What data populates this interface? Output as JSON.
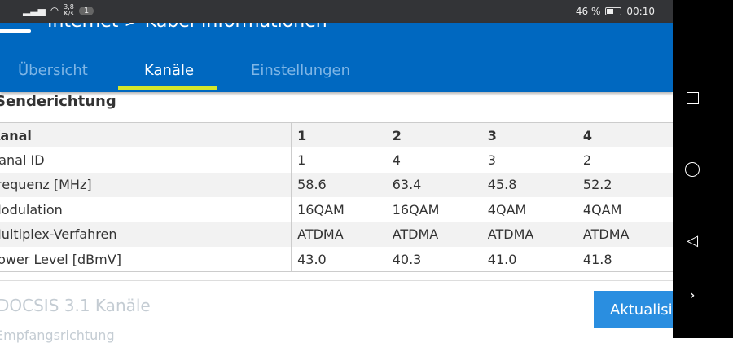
{
  "status": {
    "speed_value": "3,8",
    "speed_unit": "K/s",
    "notif_count": "1",
    "battery": "46 %",
    "time": "00:10"
  },
  "header": {
    "title": "Internet > Kabel-Informationen",
    "tabs": [
      {
        "label": "Übersicht"
      },
      {
        "label": "Kanäle",
        "active": true
      },
      {
        "label": "Einstellungen"
      }
    ]
  },
  "section": {
    "title": "Senderichtung"
  },
  "table": {
    "rows": [
      [
        "Kanal",
        "1",
        "2",
        "3",
        "4"
      ],
      [
        "Kanal ID",
        "1",
        "4",
        "3",
        "2"
      ],
      [
        "Frequenz [MHz]",
        "58.6",
        "63.4",
        "45.8",
        "52.2"
      ],
      [
        "Modulation",
        "16QAM",
        "16QAM",
        "4QAM",
        "4QAM"
      ],
      [
        "Multiplex-Verfahren",
        "ATDMA",
        "ATDMA",
        "ATDMA",
        "ATDMA"
      ],
      [
        "Power Level [dBmV]",
        "43.0",
        "40.3",
        "41.0",
        "41.8"
      ]
    ]
  },
  "docsis": {
    "title": "DOCSIS 3.1 Kanäle",
    "sub": "Empfangsrichtung",
    "refresh_label": "Aktualisieren"
  }
}
